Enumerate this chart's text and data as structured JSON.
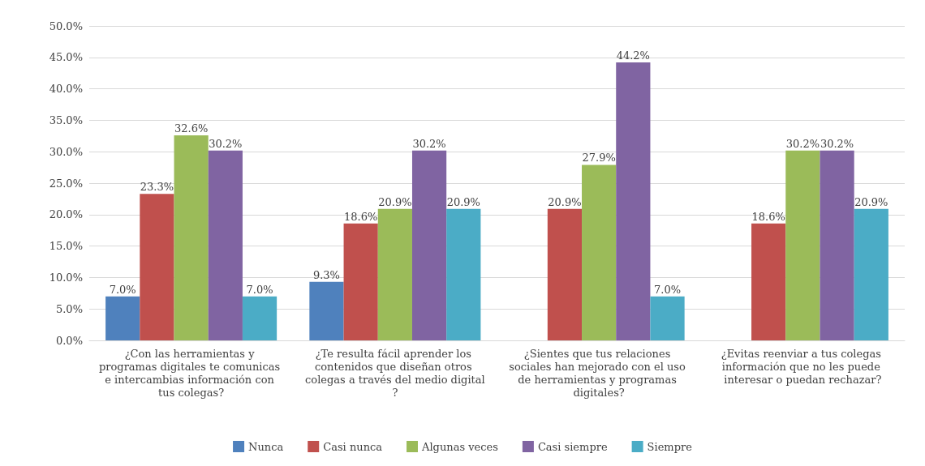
{
  "chart_data": {
    "type": "bar",
    "categories": [
      "¿Con las herramientas y programas digitales te comunicas e intercambias información con tus colegas?",
      "¿Te resulta fácil aprender los contenidos que diseñan otros colegas a través del medio digital?",
      "¿Sientes que tus relaciones sociales han mejorado con el uso de herramientas y programas digitales?",
      "¿Evitas reenviar a tus colegas información que no les puede interesar o puedan rechazar?"
    ],
    "series": [
      {
        "name": "Nunca",
        "color": "#4f81bd",
        "values": [
          7.0,
          9.3,
          null,
          null
        ],
        "value_labels": [
          "7.0%",
          "9.3%",
          null,
          null
        ]
      },
      {
        "name": "Casi nunca",
        "color": "#c0504d",
        "values": [
          23.3,
          18.6,
          20.9,
          18.6
        ],
        "value_labels": [
          "23.3%",
          "18.6%",
          "20.9%",
          "18.6%"
        ]
      },
      {
        "name": "Algunas veces",
        "color": "#9bbb59",
        "values": [
          32.6,
          20.9,
          27.9,
          30.2
        ],
        "value_labels": [
          "32.6%",
          "20.9%",
          "27.9%",
          "30.2%"
        ]
      },
      {
        "name": "Casi siempre",
        "color": "#8064a2",
        "values": [
          30.2,
          30.2,
          44.2,
          30.2
        ],
        "value_labels": [
          "30.2%",
          "30.2%",
          "44.2%",
          "30.2%"
        ]
      },
      {
        "name": "Siempre",
        "color": "#4bacc6",
        "values": [
          7.0,
          20.9,
          7.0,
          20.9
        ],
        "value_labels": [
          "7.0%",
          "20.9%",
          "7.0%",
          "20.9%"
        ]
      }
    ],
    "ylim": [
      0,
      50
    ],
    "yticks": [
      {
        "value": 0,
        "label": "0.0%"
      },
      {
        "value": 5,
        "label": "5.0%"
      },
      {
        "value": 10,
        "label": "10.0%"
      },
      {
        "value": 15,
        "label": "15.0%"
      },
      {
        "value": 20,
        "label": "20.0%"
      },
      {
        "value": 25,
        "label": "25.0%"
      },
      {
        "value": 30,
        "label": "30.0%"
      },
      {
        "value": 35,
        "label": "35.0%"
      },
      {
        "value": 40,
        "label": "40.0%"
      },
      {
        "value": 45,
        "label": "45.0%"
      },
      {
        "value": 50,
        "label": "50.0%"
      }
    ],
    "grid": "y",
    "legend": "bottom"
  }
}
